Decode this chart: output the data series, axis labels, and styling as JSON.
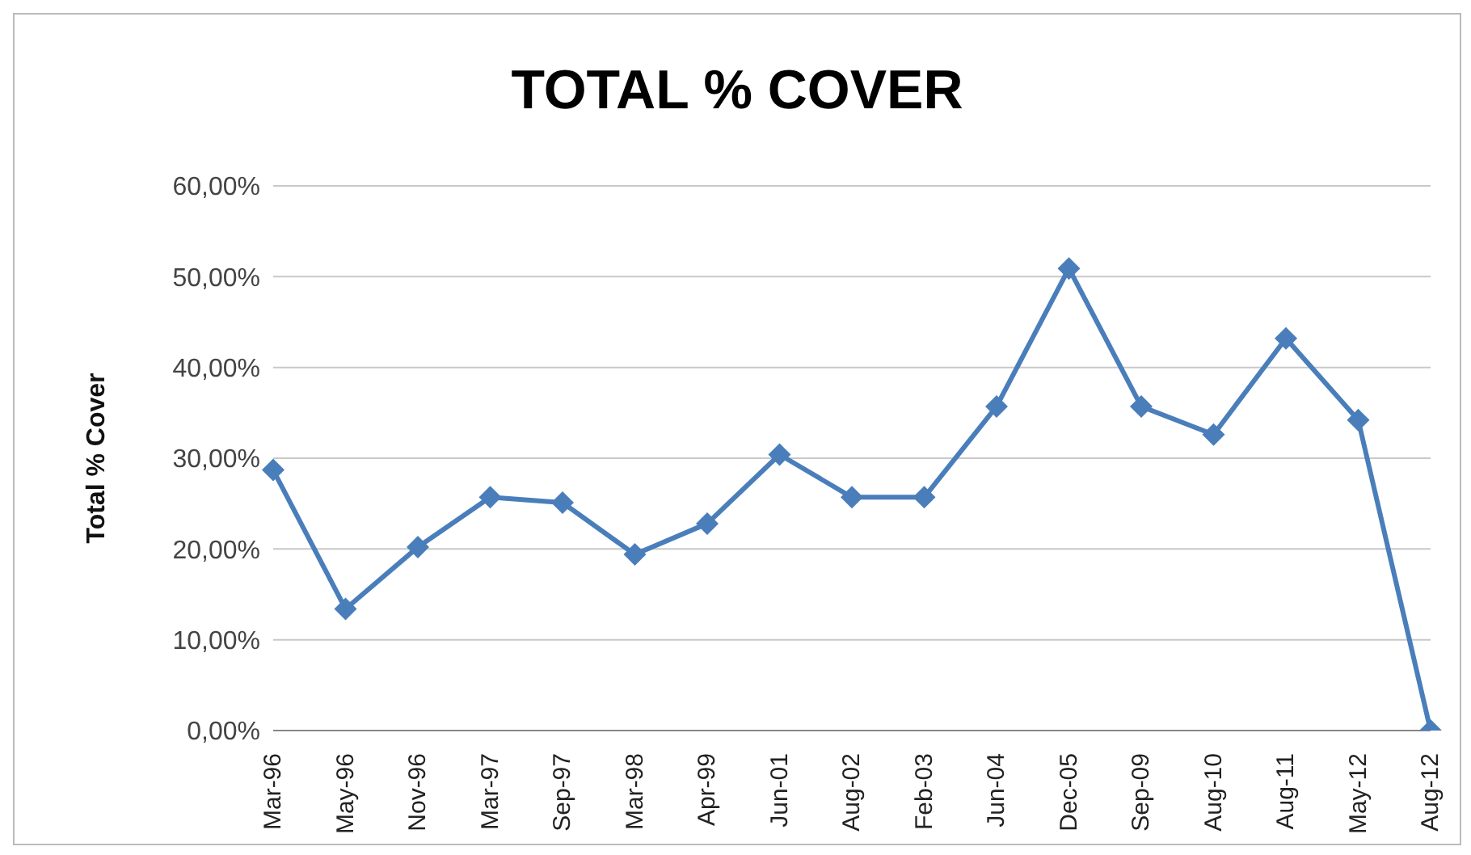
{
  "chart_data": {
    "type": "line",
    "title": "TOTAL % COVER",
    "ylabel": "Total % Cover",
    "categories": [
      "Mar-96",
      "May-96",
      "Nov-96",
      "Mar-97",
      "Sep-97",
      "Mar-98",
      "Apr-99",
      "Jun-01",
      "Aug-02",
      "Feb-03",
      "Jun-04",
      "Dec-05",
      "Sep-09",
      "Aug-10",
      "Aug-11",
      "May-12",
      "Aug-12"
    ],
    "series": [
      {
        "color": "#4a7ebb",
        "values": [
          28.7,
          13.4,
          20.2,
          25.7,
          25.1,
          19.4,
          22.8,
          30.4,
          25.7,
          25.7,
          35.7,
          50.9,
          35.7,
          32.6,
          43.2,
          34.2,
          0
        ]
      }
    ],
    "ylim": [
      0,
      60
    ],
    "yticks": [
      {
        "value": 0,
        "label": "0,00%"
      },
      {
        "value": 10,
        "label": "10,00%"
      },
      {
        "value": 20,
        "label": "20,00%"
      },
      {
        "value": 30,
        "label": "30,00%"
      },
      {
        "value": 40,
        "label": "40,00%"
      },
      {
        "value": 50,
        "label": "50,00%"
      },
      {
        "value": 60,
        "label": "60,00%"
      }
    ],
    "grid": "y",
    "marker": "diamond",
    "line_style": "solid",
    "legend": false
  }
}
